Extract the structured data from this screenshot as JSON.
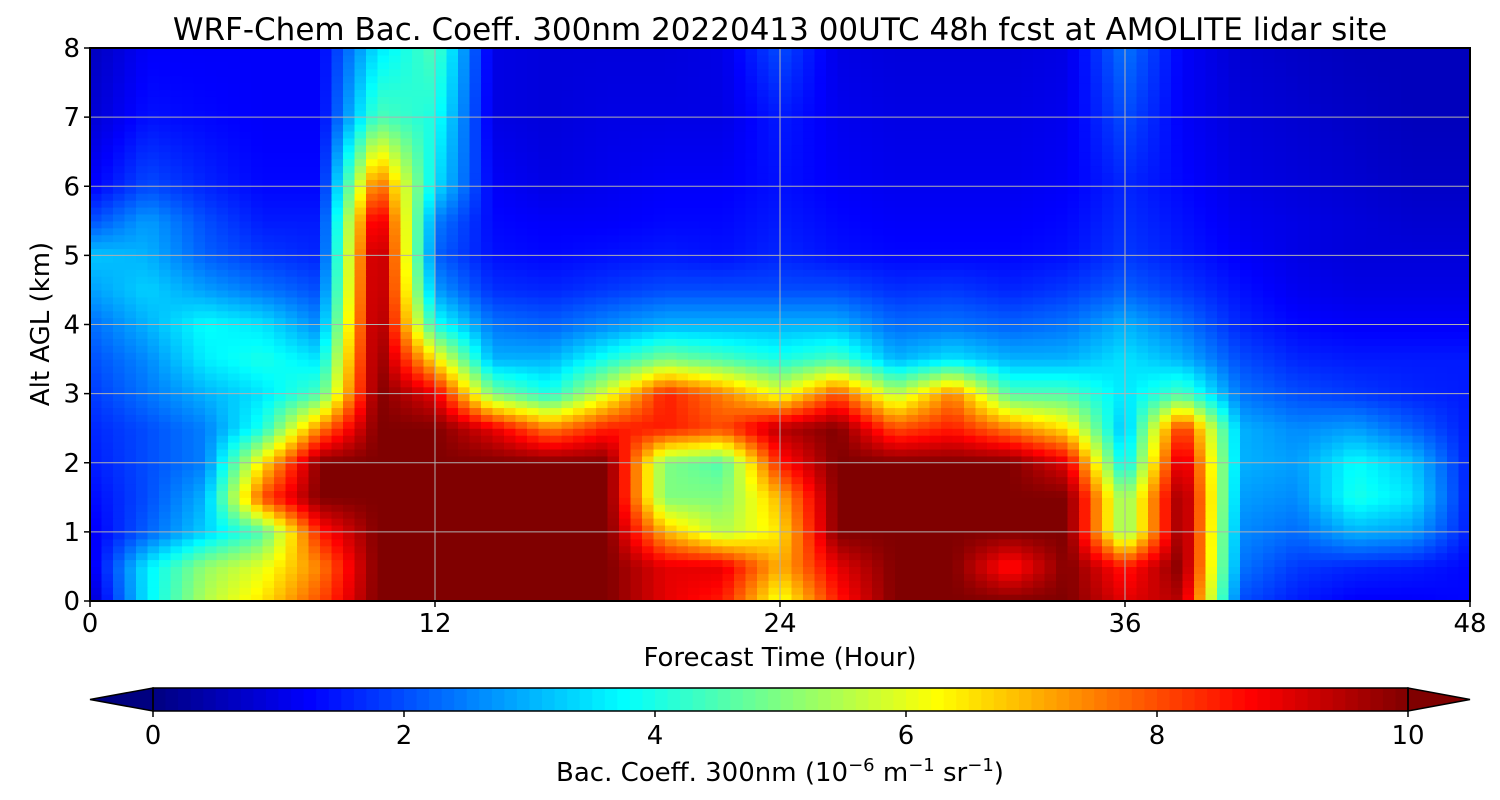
{
  "chart_data": {
    "type": "heatmap",
    "title": "WRF-Chem Bac. Coeff. 300nm  20220413 00UTC 48h fcst at AMOLITE lidar site",
    "xlabel": "Forecast Time (Hour)",
    "ylabel": "Alt AGL (km)",
    "xlim": [
      0,
      48
    ],
    "ylim": [
      0,
      8
    ],
    "x_ticks": [
      0,
      12,
      24,
      36,
      48
    ],
    "y_ticks": [
      0,
      1,
      2,
      3,
      4,
      5,
      6,
      7,
      8
    ],
    "grid": true,
    "colormap": "jet",
    "colorbar": {
      "orientation": "horizontal",
      "position": "bottom",
      "range": [
        0,
        10
      ],
      "ticks": [
        0,
        2,
        4,
        6,
        8,
        10
      ],
      "extend": "both",
      "label_main": "Bac. Coeff. 300nm  (10",
      "label_exp1": "−6",
      "label_mid": " m",
      "label_exp2": "−1",
      "label_mid2": " sr",
      "label_exp3": "−1",
      "label_end": ")"
    },
    "x": [
      0,
      2,
      4,
      6,
      8,
      10,
      12,
      14,
      16,
      18,
      20,
      22,
      24,
      26,
      28,
      30,
      32,
      34,
      36,
      38,
      40,
      42,
      44,
      46,
      48
    ],
    "y": [
      0,
      0.5,
      1,
      1.5,
      2,
      2.5,
      3,
      3.5,
      4,
      4.5,
      5,
      5.5,
      6,
      7,
      8
    ],
    "z": [
      [
        0.6,
        3.6,
        5.5,
        6.5,
        8.0,
        10,
        10,
        10,
        10,
        10,
        9.0,
        8.5,
        6.0,
        8.5,
        10,
        10,
        10,
        10,
        9.0,
        9.5,
        2.0,
        1.5,
        1.2,
        1.2,
        1.3
      ],
      [
        1.0,
        3.6,
        5.2,
        6.0,
        7.5,
        10,
        10,
        10,
        10,
        10,
        9.0,
        9.0,
        7.0,
        9.0,
        10,
        10,
        8.5,
        10,
        8.5,
        10,
        2.4,
        1.8,
        1.6,
        1.5,
        1.3
      ],
      [
        1.1,
        2.2,
        3.3,
        4.5,
        8.5,
        10,
        10,
        10,
        10,
        10,
        7.0,
        5.5,
        6.5,
        10,
        10,
        10,
        10,
        10,
        5.0,
        10,
        2.6,
        2.3,
        3.0,
        2.8,
        1.5
      ],
      [
        1.3,
        2.0,
        3.0,
        8.0,
        10,
        10,
        10,
        10,
        10,
        10,
        5.0,
        5.0,
        7.0,
        10,
        10,
        10,
        10,
        10,
        5.0,
        10,
        2.8,
        2.6,
        4.0,
        3.5,
        1.5
      ],
      [
        1.5,
        2.0,
        2.5,
        6.5,
        10,
        10,
        10,
        10,
        10,
        10,
        5.0,
        4.5,
        8.5,
        10,
        10,
        10,
        10,
        9.0,
        3.5,
        9.5,
        3.0,
        2.8,
        3.8,
        3.2,
        1.5
      ],
      [
        1.6,
        2.0,
        2.5,
        4.0,
        7.5,
        10,
        10,
        9.0,
        7.5,
        8.5,
        8.5,
        8.0,
        9.5,
        10,
        8.0,
        8.5,
        7.5,
        6.5,
        3.0,
        8.5,
        3.0,
        2.6,
        2.8,
        2.2,
        1.5
      ],
      [
        1.8,
        2.4,
        3.0,
        3.5,
        4.5,
        10,
        9.0,
        5.0,
        4.0,
        6.0,
        8.5,
        7.5,
        6.0,
        8.0,
        5.5,
        7.5,
        4.5,
        4.5,
        3.5,
        4.5,
        2.4,
        2.0,
        1.8,
        1.6,
        1.5
      ],
      [
        2.0,
        2.6,
        3.6,
        4.0,
        3.5,
        10,
        6.5,
        3.0,
        3.0,
        4.0,
        5.0,
        4.5,
        4.0,
        4.5,
        3.0,
        3.5,
        3.0,
        3.0,
        3.5,
        3.0,
        2.0,
        1.6,
        1.5,
        1.5,
        1.5
      ],
      [
        2.3,
        3.0,
        3.8,
        3.5,
        2.6,
        10,
        4.0,
        2.4,
        2.2,
        2.6,
        3.0,
        3.0,
        3.0,
        3.0,
        2.3,
        2.4,
        2.2,
        2.4,
        3.0,
        2.4,
        1.6,
        1.3,
        1.2,
        1.2,
        1.2
      ],
      [
        2.8,
        3.3,
        2.8,
        2.4,
        2.0,
        10,
        2.8,
        1.7,
        1.6,
        1.8,
        2.0,
        2.0,
        2.0,
        2.0,
        1.7,
        1.8,
        1.6,
        1.8,
        2.2,
        1.8,
        1.4,
        1.1,
        1.0,
        1.0,
        1.0
      ],
      [
        3.2,
        3.0,
        2.2,
        1.8,
        1.6,
        10,
        2.2,
        1.4,
        1.3,
        1.4,
        1.5,
        1.4,
        1.6,
        1.4,
        1.3,
        1.3,
        1.3,
        1.4,
        1.8,
        1.5,
        1.2,
        1.0,
        0.9,
        0.9,
        0.9
      ],
      [
        2.0,
        2.8,
        2.0,
        1.5,
        1.5,
        9.5,
        2.5,
        1.3,
        1.2,
        1.2,
        1.3,
        1.3,
        1.5,
        1.3,
        1.2,
        1.2,
        1.2,
        1.3,
        1.7,
        1.4,
        1.1,
        1.0,
        0.9,
        0.8,
        0.8
      ],
      [
        1.2,
        2.0,
        1.6,
        1.3,
        1.3,
        8.0,
        3.5,
        1.2,
        1.0,
        1.1,
        1.2,
        1.2,
        1.4,
        1.2,
        1.1,
        1.1,
        1.1,
        1.2,
        1.6,
        1.3,
        1.0,
        0.9,
        0.8,
        0.7,
        0.7
      ],
      [
        0.8,
        1.4,
        1.3,
        1.2,
        1.2,
        4.5,
        4.0,
        1.0,
        0.9,
        1.0,
        1.0,
        1.0,
        1.5,
        1.1,
        1.0,
        1.0,
        1.0,
        1.1,
        2.0,
        1.2,
        0.9,
        0.8,
        0.7,
        0.6,
        0.6
      ],
      [
        0.6,
        1.2,
        1.2,
        1.2,
        1.2,
        3.5,
        4.5,
        1.0,
        0.9,
        0.9,
        0.9,
        1.0,
        2.0,
        1.0,
        0.9,
        0.9,
        0.9,
        1.0,
        2.4,
        1.2,
        0.8,
        0.7,
        0.6,
        0.6,
        0.6
      ]
    ]
  }
}
